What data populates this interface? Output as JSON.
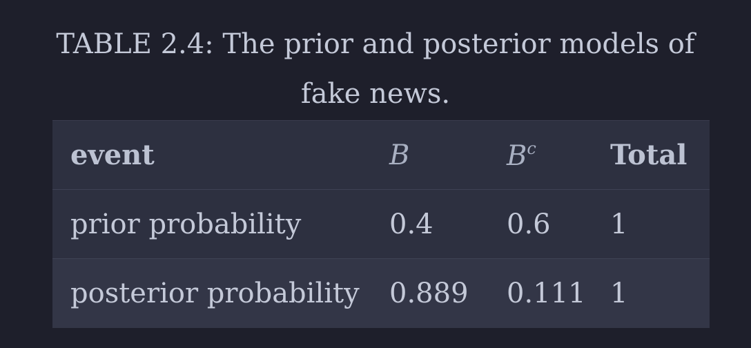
{
  "caption": {
    "line1": "TABLE 2.4: The prior and posterior models of",
    "line2": "fake news."
  },
  "table": {
    "headers": {
      "event": "event",
      "b": "B",
      "bc_base": "B",
      "bc_sup": "c",
      "total": "Total"
    },
    "rows": [
      {
        "event": "prior probability",
        "b": "0.4",
        "bc": "0.6",
        "total": "1"
      },
      {
        "event": "posterior probability",
        "b": "0.889",
        "bc": "0.111",
        "total": "1"
      }
    ]
  },
  "colors": {
    "background": "#1e1f2b",
    "header_row": "#2d3040",
    "row_alt": "#333647",
    "text": "#c4c9d8"
  }
}
